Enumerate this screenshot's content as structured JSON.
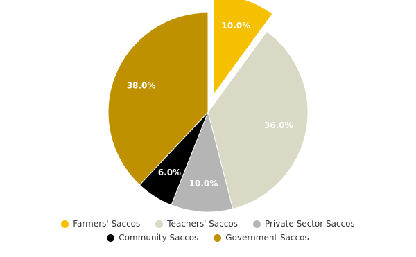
{
  "chart_data": {
    "type": "pie",
    "categories": [
      "Farmers' Saccos",
      "Teachers' Saccos",
      "Private Sector Saccos",
      "Community Saccos",
      "Government Saccos"
    ],
    "values": [
      10,
      36,
      10,
      6,
      38
    ],
    "value_labels": [
      "10.0%",
      "36.0%",
      "10.0%",
      "6.0%",
      "38.0%"
    ],
    "colors": [
      "#f5c000",
      "#d9d9c6",
      "#b5b5b5",
      "#000000",
      "#bf9000"
    ],
    "exploded": [
      0
    ]
  }
}
